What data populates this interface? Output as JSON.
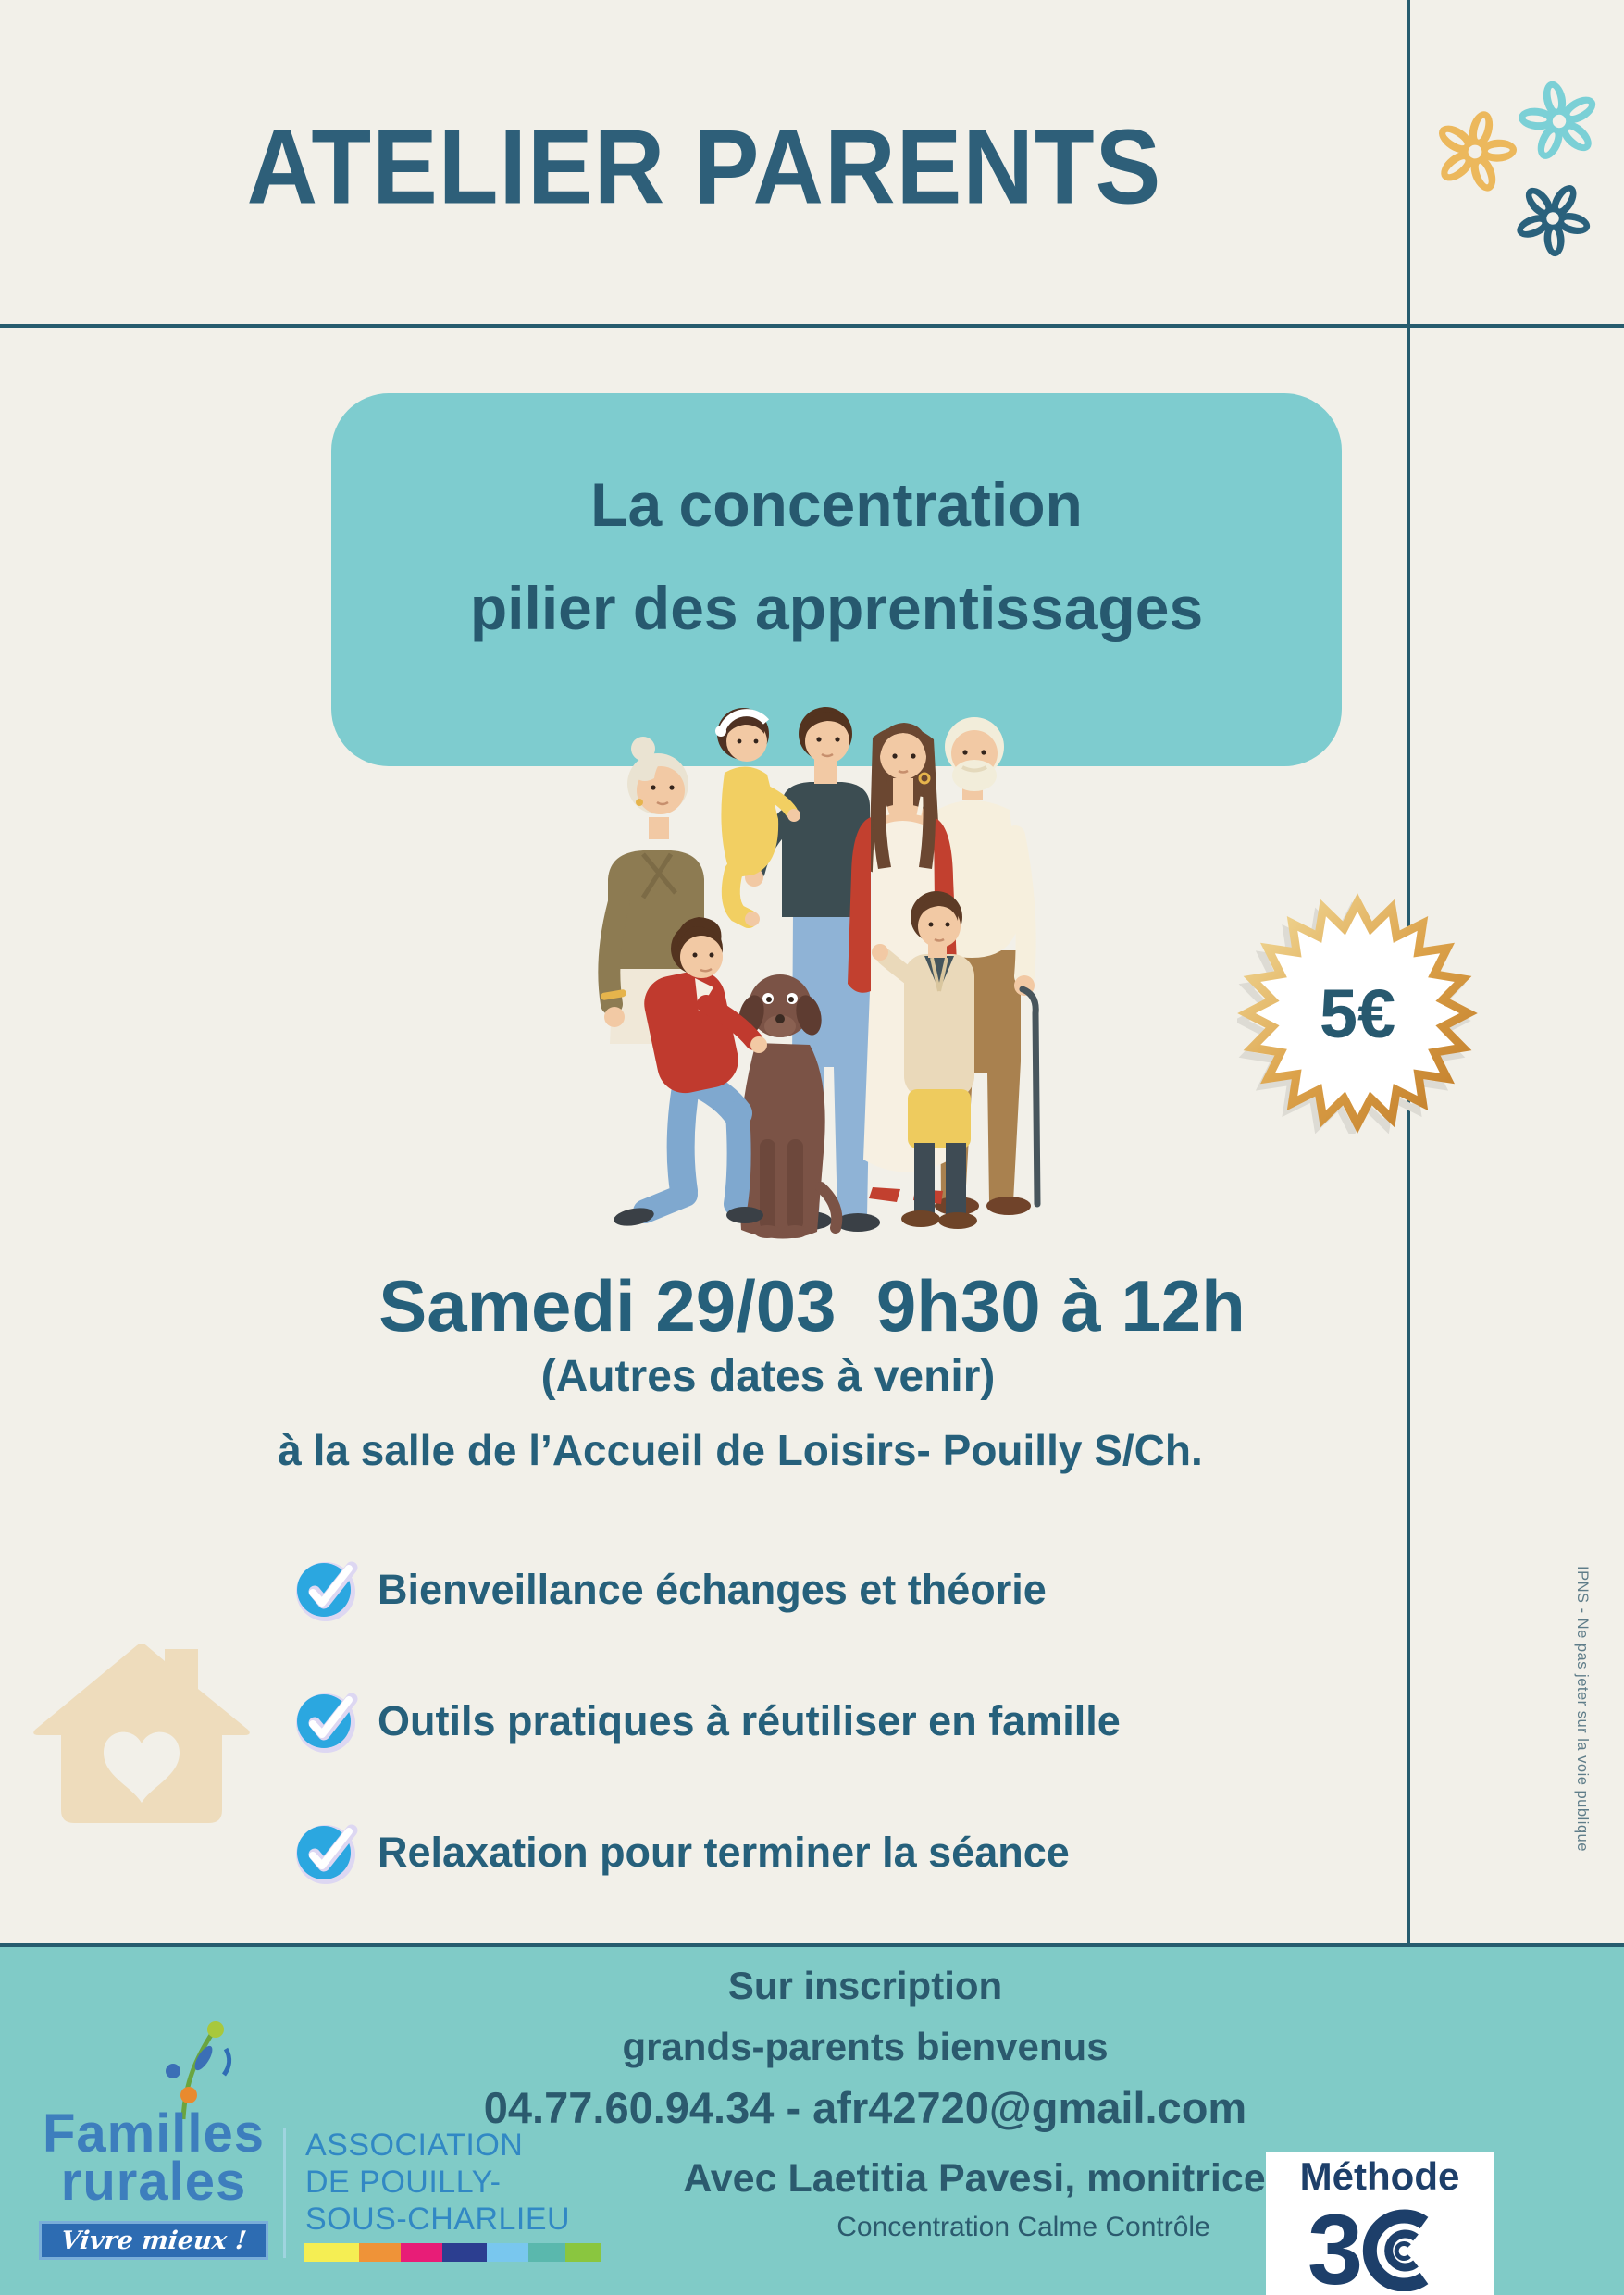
{
  "poster": {
    "header": {
      "title": "ATELIER PARENTS"
    },
    "topic_box": {
      "line1": "La concentration",
      "line2": "pilier des apprentissages"
    },
    "price_badge": "5€",
    "schedule": {
      "date_time": "Samedi 29/03  9h30 à 12h",
      "other_dates": "(Autres dates à venir)",
      "location": "à la salle de l’Accueil de Loisirs- Pouilly S/Ch."
    },
    "checklist": [
      "Bienveillance échanges et théorie",
      "Outils pratiques à réutiliser en famille",
      "Relaxation pour terminer la séance"
    ],
    "print_note": "IPNS - Ne pas jeter sur la voie publique",
    "footer": {
      "registration": [
        "Sur inscription",
        "grands-parents bienvenus",
        "04.77.60.94.34 - afr42720@gmail.com"
      ],
      "animator": "Avec Laetitia Pavesi, monitrice",
      "animator_subtitle": "Concentration Calme Contrôle",
      "method": {
        "label": "Méthode",
        "name": "3C"
      },
      "org": {
        "name_line1": "Familles",
        "name_line2": "rurales",
        "tagline": "Vivre mieux !",
        "association_lines": [
          "ASSOCIATION",
          "DE POUILLY-",
          "SOUS-CHARLIEU"
        ]
      }
    },
    "colors": {
      "background": "#f2f0e9",
      "text_teal": "#26607b",
      "accent_box_teal": "#7ecccf",
      "footer_teal": "#80cbc7",
      "rule_dark_teal": "#275c6e",
      "badge_gold": "#d99d3e",
      "flower_gold": "#ecb85c",
      "flower_light_teal": "#7bd0d6",
      "flower_dark_teal": "#2a617c",
      "check_blue": "#2ba7e0",
      "check_halo": "#ddd7f2",
      "house_beige": "#eedcbc",
      "logo_blue": "#3d7ebd",
      "method_navy": "#1d3f6a"
    }
  }
}
